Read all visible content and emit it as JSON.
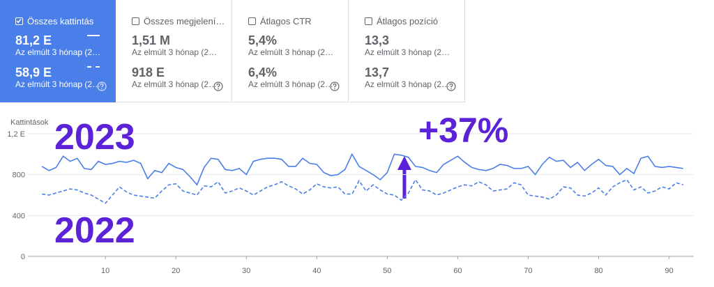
{
  "cards": [
    {
      "title": "Összes kattintás",
      "value1": "81,2 E",
      "sub1": "Az elmúlt 3 hónap (2…",
      "value2": "58,9 E",
      "sub2": "Az elmúlt 3 hónap (2…"
    },
    {
      "title": "Összes megjelení…",
      "value1": "1,51 M",
      "sub1": "Az elmúlt 3 hónap (2…",
      "value2": "918 E",
      "sub2": "Az elmúlt 3 hónap (2…"
    },
    {
      "title": "Átlagos CTR",
      "value1": "5,4%",
      "sub1": "Az elmúlt 3 hónap (2…",
      "value2": "6,4%",
      "sub2": "Az elmúlt 3 hónap (2…"
    },
    {
      "title": "Átlagos pozíció",
      "value1": "13,3",
      "sub1": "Az elmúlt 3 hónap (2…",
      "value2": "13,7",
      "sub2": "Az elmúlt 3 hónap (2…"
    }
  ],
  "chart_data": {
    "type": "line",
    "y_label": "Kattintások",
    "x": [
      1,
      2,
      3,
      4,
      5,
      6,
      7,
      8,
      9,
      10,
      11,
      12,
      13,
      14,
      15,
      16,
      17,
      18,
      19,
      20,
      21,
      22,
      23,
      24,
      25,
      26,
      27,
      28,
      29,
      30,
      31,
      32,
      33,
      34,
      35,
      36,
      37,
      38,
      39,
      40,
      41,
      42,
      43,
      44,
      45,
      46,
      47,
      48,
      49,
      50,
      51,
      52,
      53,
      54,
      55,
      56,
      57,
      58,
      59,
      60,
      61,
      62,
      63,
      64,
      65,
      66,
      67,
      68,
      69,
      70,
      71,
      72,
      73,
      74,
      75,
      76,
      77,
      78,
      79,
      80,
      81,
      82,
      83,
      84,
      85,
      86,
      87,
      88,
      89,
      90,
      91,
      92
    ],
    "series": [
      {
        "color": "#4a7ee8",
        "style": "solid",
        "values": [
          880,
          840,
          870,
          980,
          930,
          960,
          860,
          850,
          930,
          900,
          910,
          930,
          920,
          940,
          910,
          760,
          840,
          820,
          910,
          870,
          850,
          780,
          700,
          870,
          960,
          950,
          850,
          840,
          860,
          800,
          930,
          950,
          960,
          960,
          950,
          880,
          880,
          960,
          910,
          900,
          820,
          790,
          800,
          850,
          1000,
          880,
          840,
          800,
          750,
          820,
          1000,
          990,
          970,
          880,
          870,
          840,
          820,
          900,
          940,
          980,
          920,
          870,
          850,
          840,
          860,
          900,
          890,
          860,
          860,
          880,
          800,
          900,
          970,
          930,
          940,
          870,
          920,
          840,
          900,
          950,
          890,
          880,
          800,
          860,
          810,
          960,
          980,
          880,
          870,
          880,
          870,
          860
        ]
      },
      {
        "color": "#4a7ee8",
        "style": "dashed",
        "values": [
          610,
          600,
          620,
          640,
          660,
          650,
          620,
          600,
          560,
          520,
          600,
          680,
          630,
          600,
          590,
          580,
          570,
          640,
          700,
          710,
          640,
          620,
          600,
          690,
          680,
          730,
          620,
          640,
          670,
          640,
          600,
          640,
          680,
          700,
          730,
          690,
          660,
          610,
          650,
          710,
          680,
          670,
          680,
          610,
          610,
          740,
          640,
          700,
          650,
          610,
          600,
          550,
          620,
          750,
          650,
          640,
          600,
          620,
          650,
          680,
          700,
          690,
          730,
          700,
          640,
          650,
          660,
          720,
          700,
          600,
          590,
          580,
          560,
          600,
          680,
          670,
          600,
          590,
          620,
          670,
          600,
          680,
          720,
          750,
          650,
          680,
          620,
          640,
          680,
          660,
          720,
          700
        ]
      }
    ],
    "xlim": [
      -1,
      93.5
    ],
    "xticks": [
      10,
      20,
      30,
      40,
      50,
      60,
      70,
      80,
      90
    ],
    "ylim": [
      0,
      1200
    ],
    "yticks": [
      0,
      400,
      800,
      {
        "value": 1200,
        "label": "1,2 E"
      }
    ],
    "grid": true,
    "annotations": [
      "2023",
      "2022",
      "+37%"
    ],
    "annotation_color": "#5b22d8"
  }
}
